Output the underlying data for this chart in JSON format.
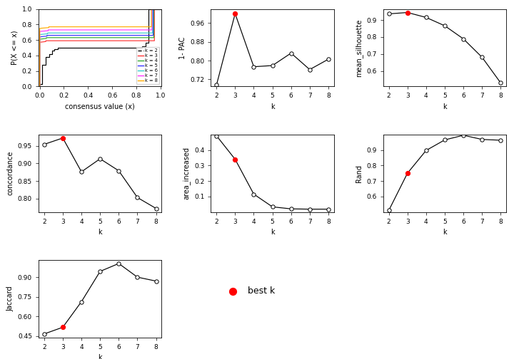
{
  "k_values": [
    2,
    3,
    4,
    5,
    6,
    7,
    8
  ],
  "pac_1minus": [
    0.696,
    1.0,
    0.774,
    0.779,
    0.832,
    0.762,
    0.806
  ],
  "pac_best_k": 3,
  "mean_silhouette": [
    0.936,
    0.944,
    0.915,
    0.866,
    0.789,
    0.681,
    0.53
  ],
  "sil_best_k": 3,
  "concordance": [
    0.954,
    0.972,
    0.876,
    0.913,
    0.879,
    0.803,
    0.772
  ],
  "conc_best_k": 3,
  "area_increased": [
    0.492,
    0.34,
    0.115,
    0.033,
    0.02,
    0.018,
    0.018
  ],
  "area_best_k": 3,
  "rand": [
    0.51,
    0.75,
    0.897,
    0.965,
    0.995,
    0.968,
    0.963
  ],
  "rand_best_k": 3,
  "jaccard": [
    0.467,
    0.518,
    0.713,
    0.944,
    1.004,
    0.9,
    0.87
  ],
  "jacc_best_k": 3,
  "ecdf_colors": {
    "2": "#000000",
    "3": "#FF3333",
    "4": "#33AA33",
    "5": "#3333FF",
    "6": "#33CCCC",
    "7": "#FF33FF",
    "8": "#FFAA00"
  },
  "bg": "#FFFFFF"
}
